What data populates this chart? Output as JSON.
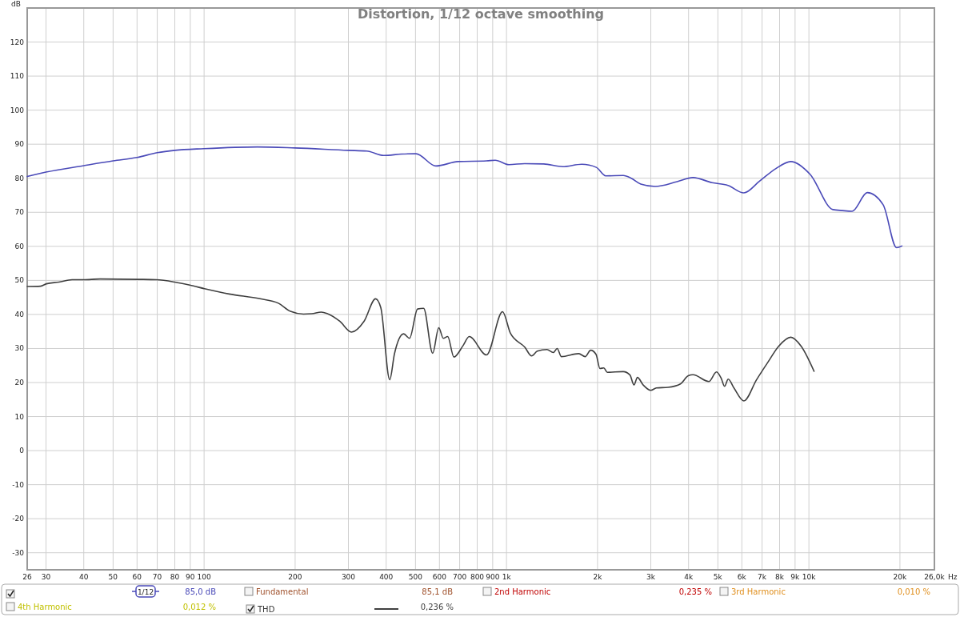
{
  "chart_data": {
    "type": "line",
    "title": "Distortion, 1/12 octave smoothing",
    "xlabel": "Hz",
    "ylabel": "dB",
    "log": "x",
    "grid": true,
    "legend": "bottom",
    "xlim": [
      26,
      26000
    ],
    "ylim": [
      -35,
      130
    ],
    "xticks": [
      26,
      30,
      40,
      50,
      60,
      70,
      80,
      90,
      100,
      200,
      300,
      400,
      500,
      600,
      700,
      800,
      900,
      {
        "value": 1000,
        "label": "1k"
      },
      {
        "value": 2000,
        "label": "2k"
      },
      {
        "value": 3000,
        "label": "3k"
      },
      {
        "value": 4000,
        "label": "4k"
      },
      {
        "value": 5000,
        "label": "5k"
      },
      {
        "value": 6000,
        "label": "6k"
      },
      {
        "value": 7000,
        "label": "7k"
      },
      {
        "value": 8000,
        "label": "8k"
      },
      {
        "value": 9000,
        "label": "9k"
      },
      {
        "value": 10000,
        "label": "10k"
      },
      {
        "value": 20000,
        "label": "20k"
      },
      {
        "value": 26000,
        "label": "26,0k"
      }
    ],
    "yticks": [
      -30,
      -20,
      -10,
      0,
      10,
      20,
      30,
      40,
      50,
      60,
      70,
      80,
      90,
      100,
      110,
      120
    ],
    "series": [
      {
        "color": "#4a4ab8",
        "x": [
          26,
          30,
          40,
          50,
          60,
          70,
          80,
          100,
          150,
          200,
          300,
          345,
          393,
          450,
          502,
          584,
          692,
          859,
          918,
          1019,
          1149,
          1328,
          1534,
          1774,
          1981,
          2128,
          2432,
          2585,
          2778,
          3100,
          3667,
          4137,
          4783,
          5400,
          6093,
          6878,
          7762,
          8710,
          10100,
          12000,
          12900,
          13900,
          15600,
          17600,
          19500,
          20300
        ],
        "values": [
          80.5,
          81.8,
          83.7,
          85.1,
          86.1,
          87.5,
          88.2,
          88.7,
          89.2,
          88.9,
          88.2,
          88.0,
          86.7,
          87.1,
          87.2,
          83.6,
          84.9,
          85.1,
          85.3,
          84.0,
          84.3,
          84.2,
          83.4,
          84.1,
          83.2,
          80.7,
          80.8,
          80.0,
          78.3,
          77.6,
          79.0,
          80.2,
          78.7,
          77.9,
          75.7,
          79.2,
          82.8,
          84.9,
          81.1,
          70.8,
          70.5,
          70.3,
          75.8,
          72.2,
          59.6,
          60.1
        ]
      },
      {
        "name": "THD",
        "color": "#404040",
        "x": [
          26,
          28.8,
          30.1,
          33.1,
          36.6,
          39.8,
          45.3,
          60.5,
          69.6,
          80,
          89.7,
          101,
          121,
          153,
          176,
          193,
          213,
          227,
          244,
          255,
          281,
          307,
          338,
          369,
          384,
          411,
          426,
          457,
          478,
          508,
          532,
          570,
          597,
          618,
          639,
          670,
          719,
          753,
          859,
          970,
          1031,
          1149,
          1211,
          1264,
          1360,
          1428,
          1471,
          1518,
          1733,
          1820,
          1898,
          1977,
          2037,
          2097,
          2153,
          2432,
          2560,
          2640,
          2710,
          2830,
          3000,
          3130,
          3420,
          3760,
          3990,
          4137,
          4667,
          4950,
          5130,
          5260,
          5410,
          5650,
          6093,
          6710,
          7310,
          7950,
          8710,
          9420,
          10400
        ],
        "values": [
          48.2,
          48.3,
          49.0,
          49.5,
          50.2,
          50.2,
          50.4,
          50.3,
          50.2,
          49.5,
          48.6,
          47.5,
          46.0,
          44.6,
          43.3,
          40.9,
          40.1,
          40.2,
          40.7,
          40.3,
          38.0,
          34.8,
          38.0,
          44.6,
          42.0,
          20.8,
          28.4,
          34.3,
          33.0,
          41.6,
          41.8,
          28.6,
          36.1,
          33.0,
          33.5,
          27.5,
          30.9,
          33.5,
          28.1,
          40.8,
          34.4,
          30.4,
          27.8,
          29.2,
          29.7,
          28.8,
          30.0,
          27.6,
          28.5,
          27.6,
          29.5,
          28.3,
          24.1,
          24.3,
          23.0,
          23.2,
          22.2,
          19.3,
          21.5,
          19.3,
          17.7,
          18.4,
          18.6,
          19.6,
          22.0,
          22.3,
          20.3,
          23.1,
          21.2,
          18.9,
          21.0,
          18.4,
          14.6,
          20.8,
          25.9,
          30.7,
          33.3,
          30.7,
          23.3
        ]
      }
    ],
    "annotations": [
      "85,0 dB",
      "1/12",
      "Fundamental",
      "85,1 dB",
      "2nd Harmonic",
      "0,235 %",
      "3rd Harmonic",
      "0,010 %",
      "4th Harmonic",
      "0,012 %",
      "0,236 %"
    ]
  }
}
